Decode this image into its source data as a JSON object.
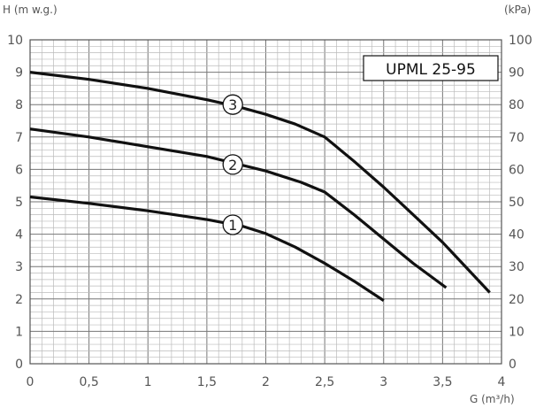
{
  "chart_data": {
    "type": "line",
    "model": "UPML 25-95",
    "y_left_label": "H (m w.g.)",
    "y_right_label": "(kPa)",
    "x_label": "G (m³/h)",
    "xlim": [
      0,
      4
    ],
    "ylim": [
      0,
      10
    ],
    "y_right_lim": [
      0,
      100
    ],
    "x_ticks": [
      "0",
      "0,5",
      "1",
      "1,5",
      "2",
      "2,5",
      "3",
      "3,5",
      "4"
    ],
    "y_left_ticks": [
      "0",
      "1",
      "2",
      "3",
      "4",
      "5",
      "6",
      "7",
      "8",
      "9",
      "10"
    ],
    "y_right_ticks": [
      "0",
      "10",
      "20",
      "30",
      "40",
      "50",
      "60",
      "70",
      "80",
      "90",
      "100"
    ],
    "grid": true,
    "series": [
      {
        "name": "1",
        "x": [
          0,
          0.5,
          1.0,
          1.5,
          1.8,
          2.0,
          2.25,
          2.5,
          2.75,
          3.0
        ],
        "y": [
          5.15,
          4.95,
          4.72,
          4.45,
          4.25,
          4.02,
          3.6,
          3.1,
          2.55,
          1.95
        ],
        "label_at": [
          1.72,
          4.29
        ]
      },
      {
        "name": "2",
        "x": [
          0,
          0.5,
          1.0,
          1.5,
          2.0,
          2.3,
          2.5,
          2.75,
          3.0,
          3.25,
          3.53
        ],
        "y": [
          7.25,
          7.0,
          6.7,
          6.4,
          5.95,
          5.6,
          5.3,
          4.6,
          3.85,
          3.1,
          2.35
        ],
        "label_at": [
          1.72,
          6.15
        ]
      },
      {
        "name": "3",
        "x": [
          0,
          0.5,
          1.0,
          1.5,
          1.75,
          2.0,
          2.25,
          2.5,
          2.75,
          3.0,
          3.25,
          3.5,
          3.9
        ],
        "y": [
          9.0,
          8.78,
          8.5,
          8.15,
          7.95,
          7.7,
          7.4,
          7.0,
          6.25,
          5.45,
          4.6,
          3.75,
          2.2
        ],
        "label_at": [
          1.72,
          8.0
        ]
      }
    ]
  }
}
